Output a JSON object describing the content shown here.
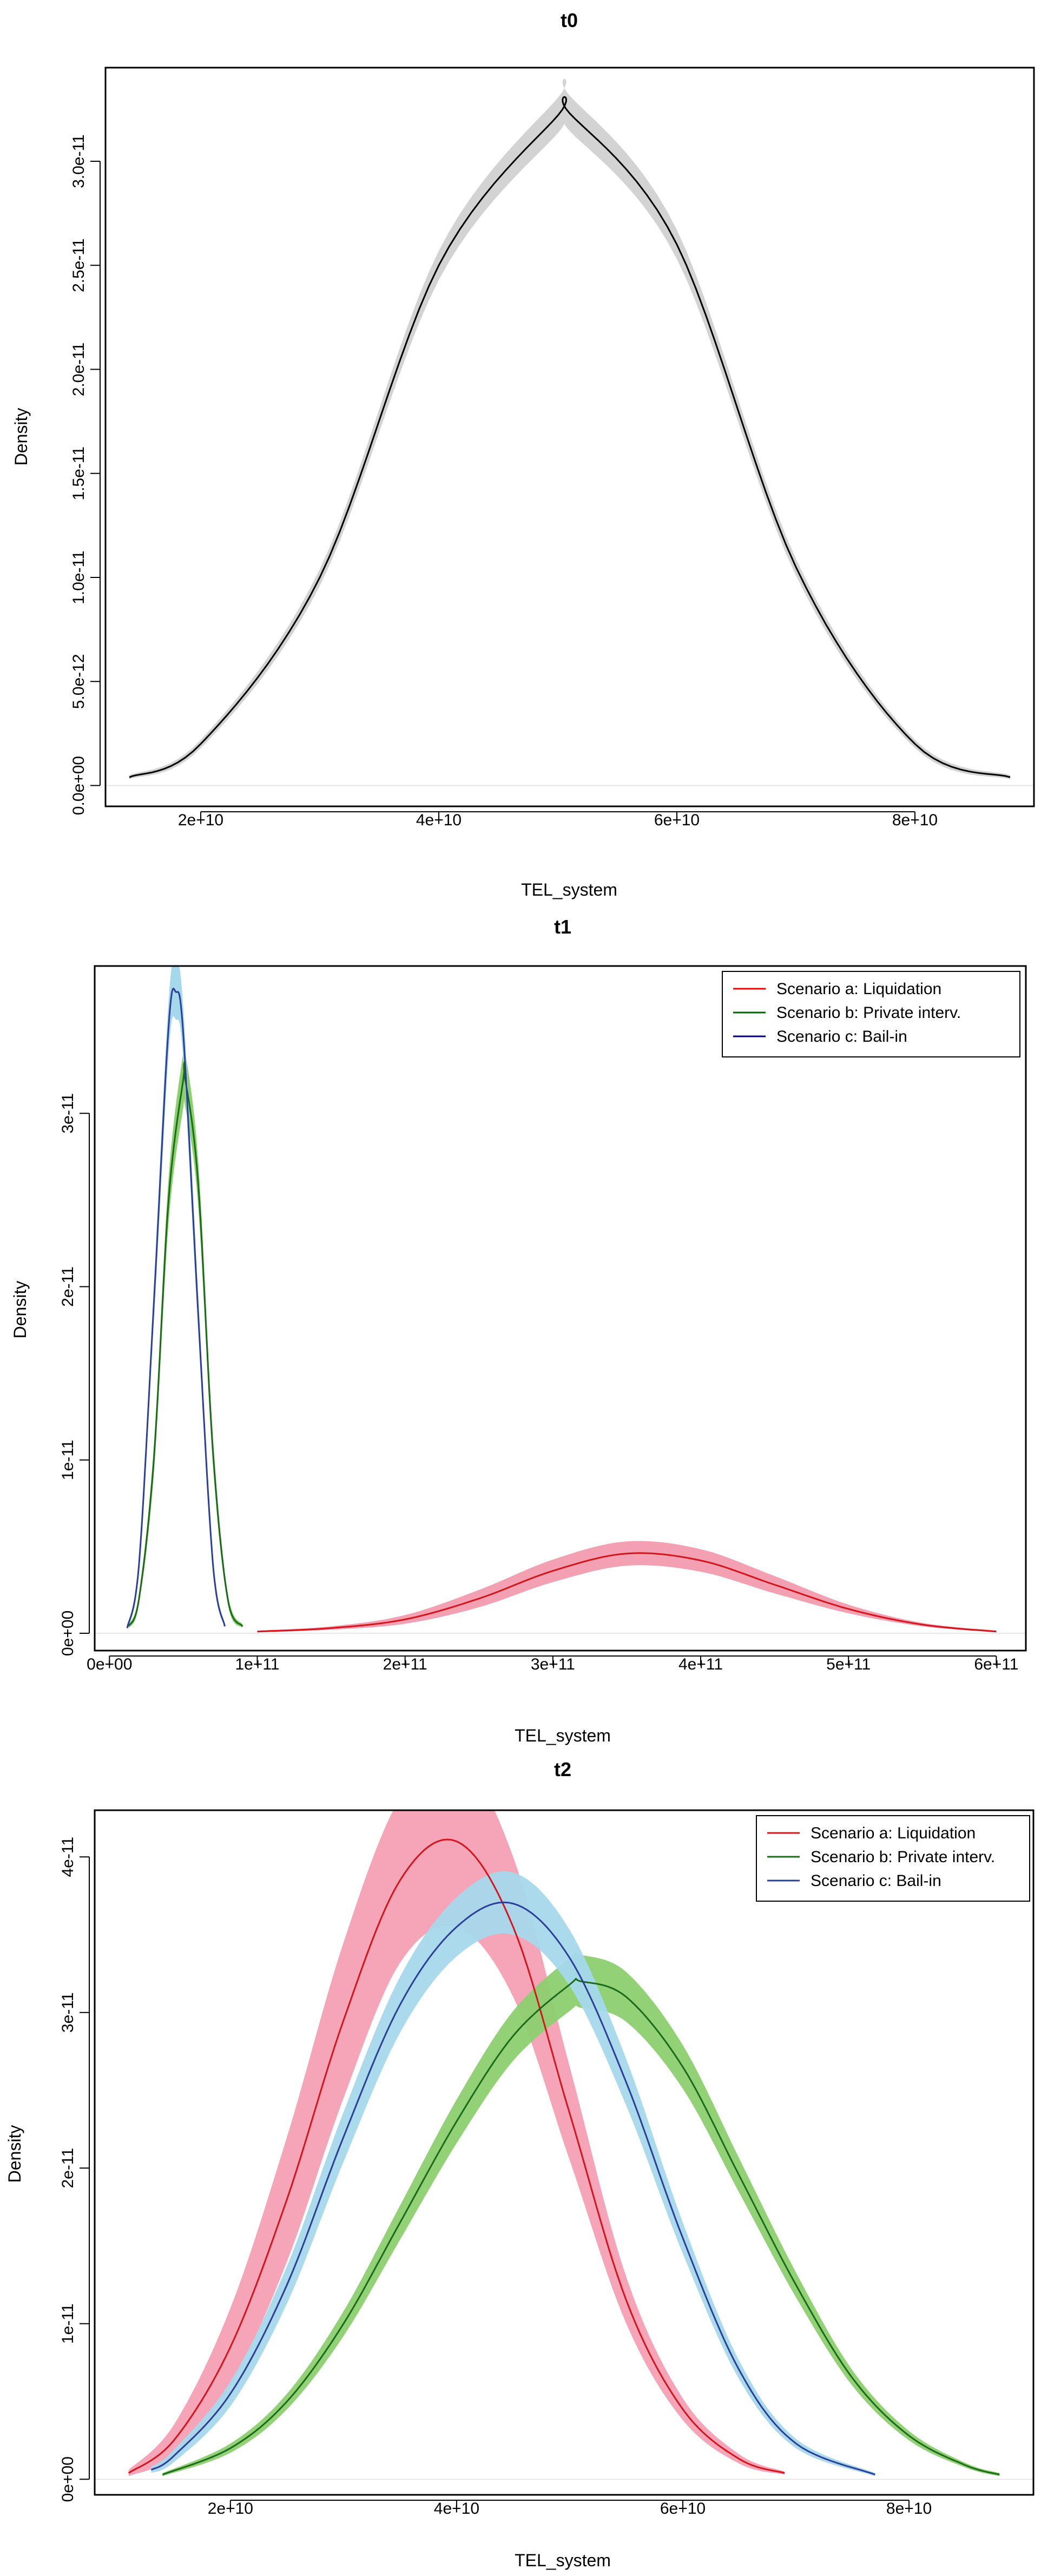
{
  "chart_data": [
    {
      "type": "line",
      "title": "t0",
      "xlabel": "TEL_system",
      "ylabel": "Density",
      "xlim": [
        12000000000.0,
        90000000000.0
      ],
      "ylim": [
        -1e-12,
        3.45e-11
      ],
      "x_ticks": [
        20000000000.0,
        40000000000.0,
        60000000000.0,
        80000000000.0
      ],
      "x_tick_labels": [
        "2e+10",
        "4e+10",
        "6e+10",
        "8e+10"
      ],
      "y_ticks": [
        0,
        5e-12,
        1e-11,
        1.5e-11,
        2e-11,
        2.5e-11,
        3e-11
      ],
      "y_tick_labels": [
        "0.0e+00",
        "5.0e-12",
        "1.0e-11",
        "1.5e-11",
        "2.0e-11",
        "2.5e-11",
        "3.0e-11"
      ],
      "legend": null,
      "series": [
        {
          "name": "t0",
          "color": "#000000",
          "band_color": "#d3d3d3",
          "x": [
            14000000000.0,
            20000000000.0,
            30000000000.0,
            40000000000.0,
            50000000000.0,
            51000000000.0,
            60000000000.0,
            70000000000.0,
            80000000000.0,
            88000000000.0
          ],
          "y": [
            4e-13,
            2e-12,
            1e-11,
            2.5e-11,
            3.22e-11,
            3.23e-11,
            2.6e-11,
            1.05e-11,
            2e-12,
            4e-13
          ],
          "band_width": [
            1e-13,
            2e-13,
            4e-13,
            7e-13,
            8.5e-13,
            8.5e-13,
            7e-13,
            4e-13,
            2e-13,
            1e-13
          ]
        }
      ]
    },
    {
      "type": "line",
      "title": "t1",
      "xlabel": "TEL_system",
      "ylabel": "Density",
      "xlim": [
        -10000000000.0,
        620000000000.0
      ],
      "ylim": [
        -1e-12,
        3.85e-11
      ],
      "x_ticks": [
        0,
        100000000000.0,
        200000000000.0,
        300000000000.0,
        400000000000.0,
        500000000000.0,
        600000000000.0
      ],
      "x_tick_labels": [
        "0e+00",
        "1e+11",
        "2e+11",
        "3e+11",
        "4e+11",
        "5e+11",
        "6e+11"
      ],
      "y_ticks": [
        0,
        1e-11,
        2e-11,
        3e-11
      ],
      "y_tick_labels": [
        "0e+00",
        "1e-11",
        "2e-11",
        "3e-11"
      ],
      "legend": {
        "position": "top-right",
        "entries": [
          {
            "label": "Scenario a: Liquidation",
            "color": "#ff0000"
          },
          {
            "label": "Scenario b: Private interv.",
            "color": "#006400"
          },
          {
            "label": "Scenario c: Bail-in",
            "color": "#000080"
          }
        ]
      },
      "series": [
        {
          "name": "Scenario a: Liquidation",
          "color": "#d4151c",
          "band_color": "#f4a0b3",
          "x": [
            100000000000.0,
            150000000000.0,
            200000000000.0,
            250000000000.0,
            300000000000.0,
            350000000000.0,
            400000000000.0,
            450000000000.0,
            500000000000.0,
            550000000000.0,
            600000000000.0
          ],
          "y": [
            1e-13,
            3e-13,
            8e-13,
            2e-12,
            3.6e-12,
            4.6e-12,
            4.2e-12,
            2.8e-12,
            1.4e-12,
            5e-13,
            1e-13
          ],
          "band_width": [
            5e-14,
            1e-13,
            2.5e-13,
            5e-13,
            6.5e-13,
            7e-13,
            6.5e-13,
            5e-13,
            2.5e-13,
            1e-13,
            5e-14
          ]
        },
        {
          "name": "Scenario b: Private interv.",
          "color": "#1b6b1b",
          "band_color": "#8ccf6f",
          "x": [
            13000000000.0,
            20000000000.0,
            30000000000.0,
            40000000000.0,
            50000000000.0,
            51000000000.0,
            60000000000.0,
            70000000000.0,
            80000000000.0,
            90000000000.0
          ],
          "y": [
            4e-13,
            2e-12,
            1e-11,
            2.5e-11,
            3.2e-11,
            3.21e-11,
            2.6e-11,
            1.05e-11,
            2e-12,
            4e-13
          ],
          "band_width": [
            1e-13,
            3e-13,
            8e-13,
            1.3e-12,
            1.6e-12,
            1.6e-12,
            1.3e-12,
            8e-13,
            3e-13,
            1e-13
          ]
        },
        {
          "name": "Scenario c: Bail-in",
          "color": "#2b3f9a",
          "band_color": "#a6d8ec",
          "x": [
            12000000000.0,
            20000000000.0,
            30000000000.0,
            40000000000.0,
            45000000000.0,
            50000000000.0,
            60000000000.0,
            70000000000.0,
            78000000000.0
          ],
          "y": [
            3e-13,
            4e-12,
            1.9e-11,
            3.5e-11,
            3.7e-11,
            3.45e-11,
            1.85e-11,
            4e-12,
            4e-13
          ],
          "band_width": [
            1e-13,
            4e-13,
            1e-12,
            1.5e-12,
            1.6e-12,
            1.5e-12,
            1e-12,
            4e-13,
            1e-13
          ]
        }
      ]
    },
    {
      "type": "line",
      "title": "t2",
      "xlabel": "TEL_system",
      "ylabel": "Density",
      "xlim": [
        8000000000.0,
        91000000000.0
      ],
      "ylim": [
        -1e-12,
        4.3e-11
      ],
      "x_ticks": [
        20000000000.0,
        40000000000.0,
        60000000000.0,
        80000000000.0
      ],
      "x_tick_labels": [
        "2e+10",
        "4e+10",
        "6e+10",
        "8e+10"
      ],
      "y_ticks": [
        0,
        1e-11,
        2e-11,
        3e-11,
        4e-11
      ],
      "y_tick_labels": [
        "0e+00",
        "1e-11",
        "2e-11",
        "3e-11",
        "4e-11"
      ],
      "legend": {
        "position": "top-right",
        "entries": [
          {
            "label": "Scenario a: Liquidation",
            "color": "#d4151c"
          },
          {
            "label": "Scenario b: Private interv.",
            "color": "#1b6b1b"
          },
          {
            "label": "Scenario c: Bail-in",
            "color": "#2b3f9a"
          }
        ]
      },
      "series": [
        {
          "name": "Scenario a: Liquidation",
          "color": "#d4151c",
          "band_color": "#f4a0b3",
          "x": [
            11000000000.0,
            15000000000.0,
            20000000000.0,
            25000000000.0,
            30000000000.0,
            35000000000.0,
            40000000000.0,
            45000000000.0,
            50000000000.0,
            55000000000.0,
            60000000000.0,
            65000000000.0,
            69000000000.0
          ],
          "y": [
            4e-13,
            2.5e-12,
            8.5e-12,
            1.8e-11,
            2.95e-11,
            3.85e-11,
            4.1e-11,
            3.55e-11,
            2.35e-11,
            1.15e-11,
            4.5e-12,
            1.3e-12,
            4e-13
          ],
          "band_width": [
            2e-13,
            1e-12,
            2.5e-12,
            4e-12,
            5e-12,
            5.3e-12,
            5.5e-12,
            4.5e-12,
            3e-12,
            1.5e-12,
            7e-13,
            3e-13,
            1e-13
          ]
        },
        {
          "name": "Scenario b: Private interv.",
          "color": "#1b6b1b",
          "band_color": "#8ccf6f",
          "x": [
            14000000000.0,
            20000000000.0,
            25000000000.0,
            30000000000.0,
            35000000000.0,
            40000000000.0,
            45000000000.0,
            50000000000.0,
            51000000000.0,
            55000000000.0,
            60000000000.0,
            65000000000.0,
            70000000000.0,
            75000000000.0,
            80000000000.0,
            85000000000.0,
            88000000000.0
          ],
          "y": [
            3e-13,
            2e-12,
            5e-12,
            1e-11,
            1.65e-11,
            2.3e-11,
            2.85e-11,
            3.18e-11,
            3.2e-11,
            3.1e-11,
            2.65e-11,
            1.95e-11,
            1.25e-11,
            6.5e-12,
            2.8e-12,
            9e-13,
            3e-13
          ],
          "band_width": [
            1e-13,
            3e-13,
            5e-13,
            8e-13,
            1.1e-12,
            1.4e-12,
            1.6e-12,
            1.7e-12,
            1.7e-12,
            1.6e-12,
            1.4e-12,
            1.1e-12,
            8e-13,
            5e-13,
            3e-13,
            1.5e-13,
            1e-13
          ]
        },
        {
          "name": "Scenario c: Bail-in",
          "color": "#2b3f9a",
          "band_color": "#a6d8ec",
          "x": [
            13000000000.0,
            15000000000.0,
            20000000000.0,
            25000000000.0,
            30000000000.0,
            35000000000.0,
            40000000000.0,
            45000000000.0,
            50000000000.0,
            55000000000.0,
            60000000000.0,
            65000000000.0,
            70000000000.0,
            77000000000.0
          ],
          "y": [
            6e-13,
            1.5e-12,
            5.5e-12,
            1.25e-11,
            2.2e-11,
            3.05e-11,
            3.55e-11,
            3.7e-11,
            3.35e-11,
            2.55e-11,
            1.55e-11,
            7e-12,
            2.3e-12,
            3e-13
          ],
          "band_width": [
            2e-13,
            4e-13,
            8e-13,
            1.2e-12,
            1.6e-12,
            1.8e-12,
            1.9e-12,
            2e-12,
            1.8e-12,
            1.5e-12,
            1e-12,
            6e-13,
            3e-13,
            1e-13
          ]
        }
      ]
    }
  ]
}
